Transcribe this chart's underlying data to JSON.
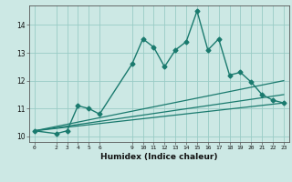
{
  "xlabel": "Humidex (Indice chaleur)",
  "ylabel": "",
  "xlim": [
    -0.5,
    23.5
  ],
  "ylim": [
    9.8,
    14.7
  ],
  "bg_color": "#cce8e4",
  "grid_color": "#99ccc6",
  "line_color": "#1a7a6e",
  "xticks": [
    0,
    2,
    3,
    4,
    5,
    6,
    9,
    10,
    11,
    12,
    13,
    14,
    15,
    16,
    17,
    18,
    19,
    20,
    21,
    22,
    23
  ],
  "yticks": [
    10,
    11,
    12,
    13,
    14
  ],
  "lines": [
    {
      "x": [
        0,
        2,
        3,
        4,
        5,
        6,
        9,
        10,
        11,
        12,
        13,
        14,
        15,
        16,
        17,
        18,
        19,
        20,
        21,
        22,
        23
      ],
      "y": [
        10.2,
        10.1,
        10.2,
        11.1,
        11.0,
        10.8,
        12.6,
        13.5,
        13.2,
        12.5,
        13.1,
        13.4,
        14.5,
        13.1,
        13.5,
        12.2,
        12.3,
        11.95,
        11.5,
        11.3,
        11.2
      ],
      "marker": "D",
      "markersize": 2.5,
      "linewidth": 1.0
    },
    {
      "x": [
        0,
        23
      ],
      "y": [
        10.2,
        11.2
      ],
      "marker": null,
      "linewidth": 0.9
    },
    {
      "x": [
        0,
        23
      ],
      "y": [
        10.2,
        11.5
      ],
      "marker": null,
      "linewidth": 0.9
    },
    {
      "x": [
        0,
        23
      ],
      "y": [
        10.2,
        12.0
      ],
      "marker": null,
      "linewidth": 0.9
    }
  ]
}
